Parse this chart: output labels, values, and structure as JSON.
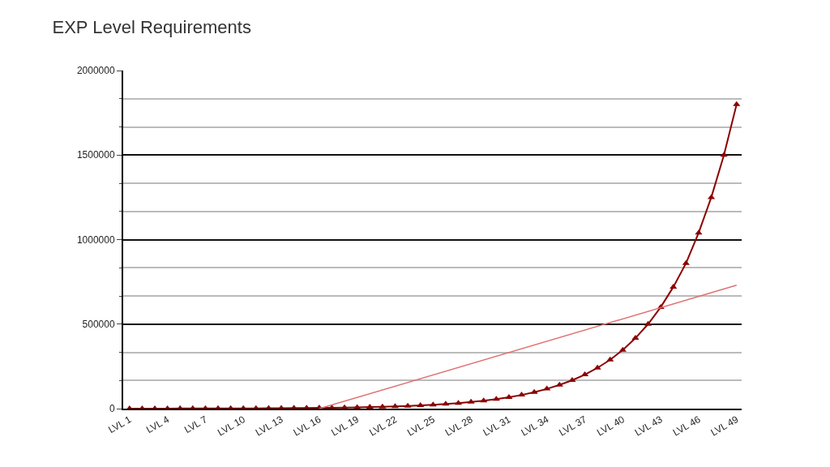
{
  "chart_data": {
    "type": "line",
    "title": "EXP Level Requirements",
    "categories": [
      "LVL 1",
      null,
      null,
      "LVL 4",
      null,
      null,
      "LVL 7",
      null,
      null,
      "LVL 10",
      null,
      null,
      "LVL 13",
      null,
      null,
      "LVL 16",
      null,
      null,
      "LVL 19",
      null,
      null,
      "LVL 22",
      null,
      null,
      "LVL 25",
      null,
      null,
      "LVL 28",
      null,
      null,
      "LVL 31",
      null,
      null,
      "LVL 34",
      null,
      null,
      "LVL 37",
      null,
      null,
      "LVL 40",
      null,
      null,
      "LVL 43",
      null,
      null,
      "LVL 46",
      null,
      null,
      "LVL 49"
    ],
    "series": [
      {
        "color": "#8b0000",
        "marker": "triangle",
        "values": [
          300,
          300,
          400,
          500,
          600,
          700,
          800,
          1000,
          1200,
          1500,
          1700,
          2100,
          2500,
          3000,
          3600,
          4400,
          5200,
          6300,
          7500,
          9000,
          10800,
          13000,
          15600,
          18800,
          22500,
          27000,
          32500,
          39000,
          47000,
          56000,
          67000,
          81000,
          97000,
          117000,
          140000,
          168000,
          201000,
          241000,
          289000,
          347000,
          417000,
          500000,
          600000,
          720000,
          860000,
          1040000,
          1250000,
          1500000,
          1800000
        ]
      },
      {
        "type": "line",
        "color": "#e07070",
        "marker": "none",
        "values": [
          null,
          null,
          null,
          null,
          null,
          null,
          null,
          null,
          null,
          null,
          null,
          null,
          null,
          null,
          null,
          0,
          null,
          null,
          null,
          null,
          null,
          null,
          null,
          null,
          null,
          null,
          null,
          null,
          null,
          null,
          null,
          null,
          null,
          null,
          null,
          null,
          null,
          null,
          null,
          null,
          null,
          null,
          null,
          null,
          null,
          null,
          null,
          null,
          730000
        ]
      }
    ],
    "ylim": [
      0,
      2000000
    ],
    "yticks": [
      0,
      500000,
      1000000,
      1500000,
      2000000
    ],
    "grid": "y"
  }
}
